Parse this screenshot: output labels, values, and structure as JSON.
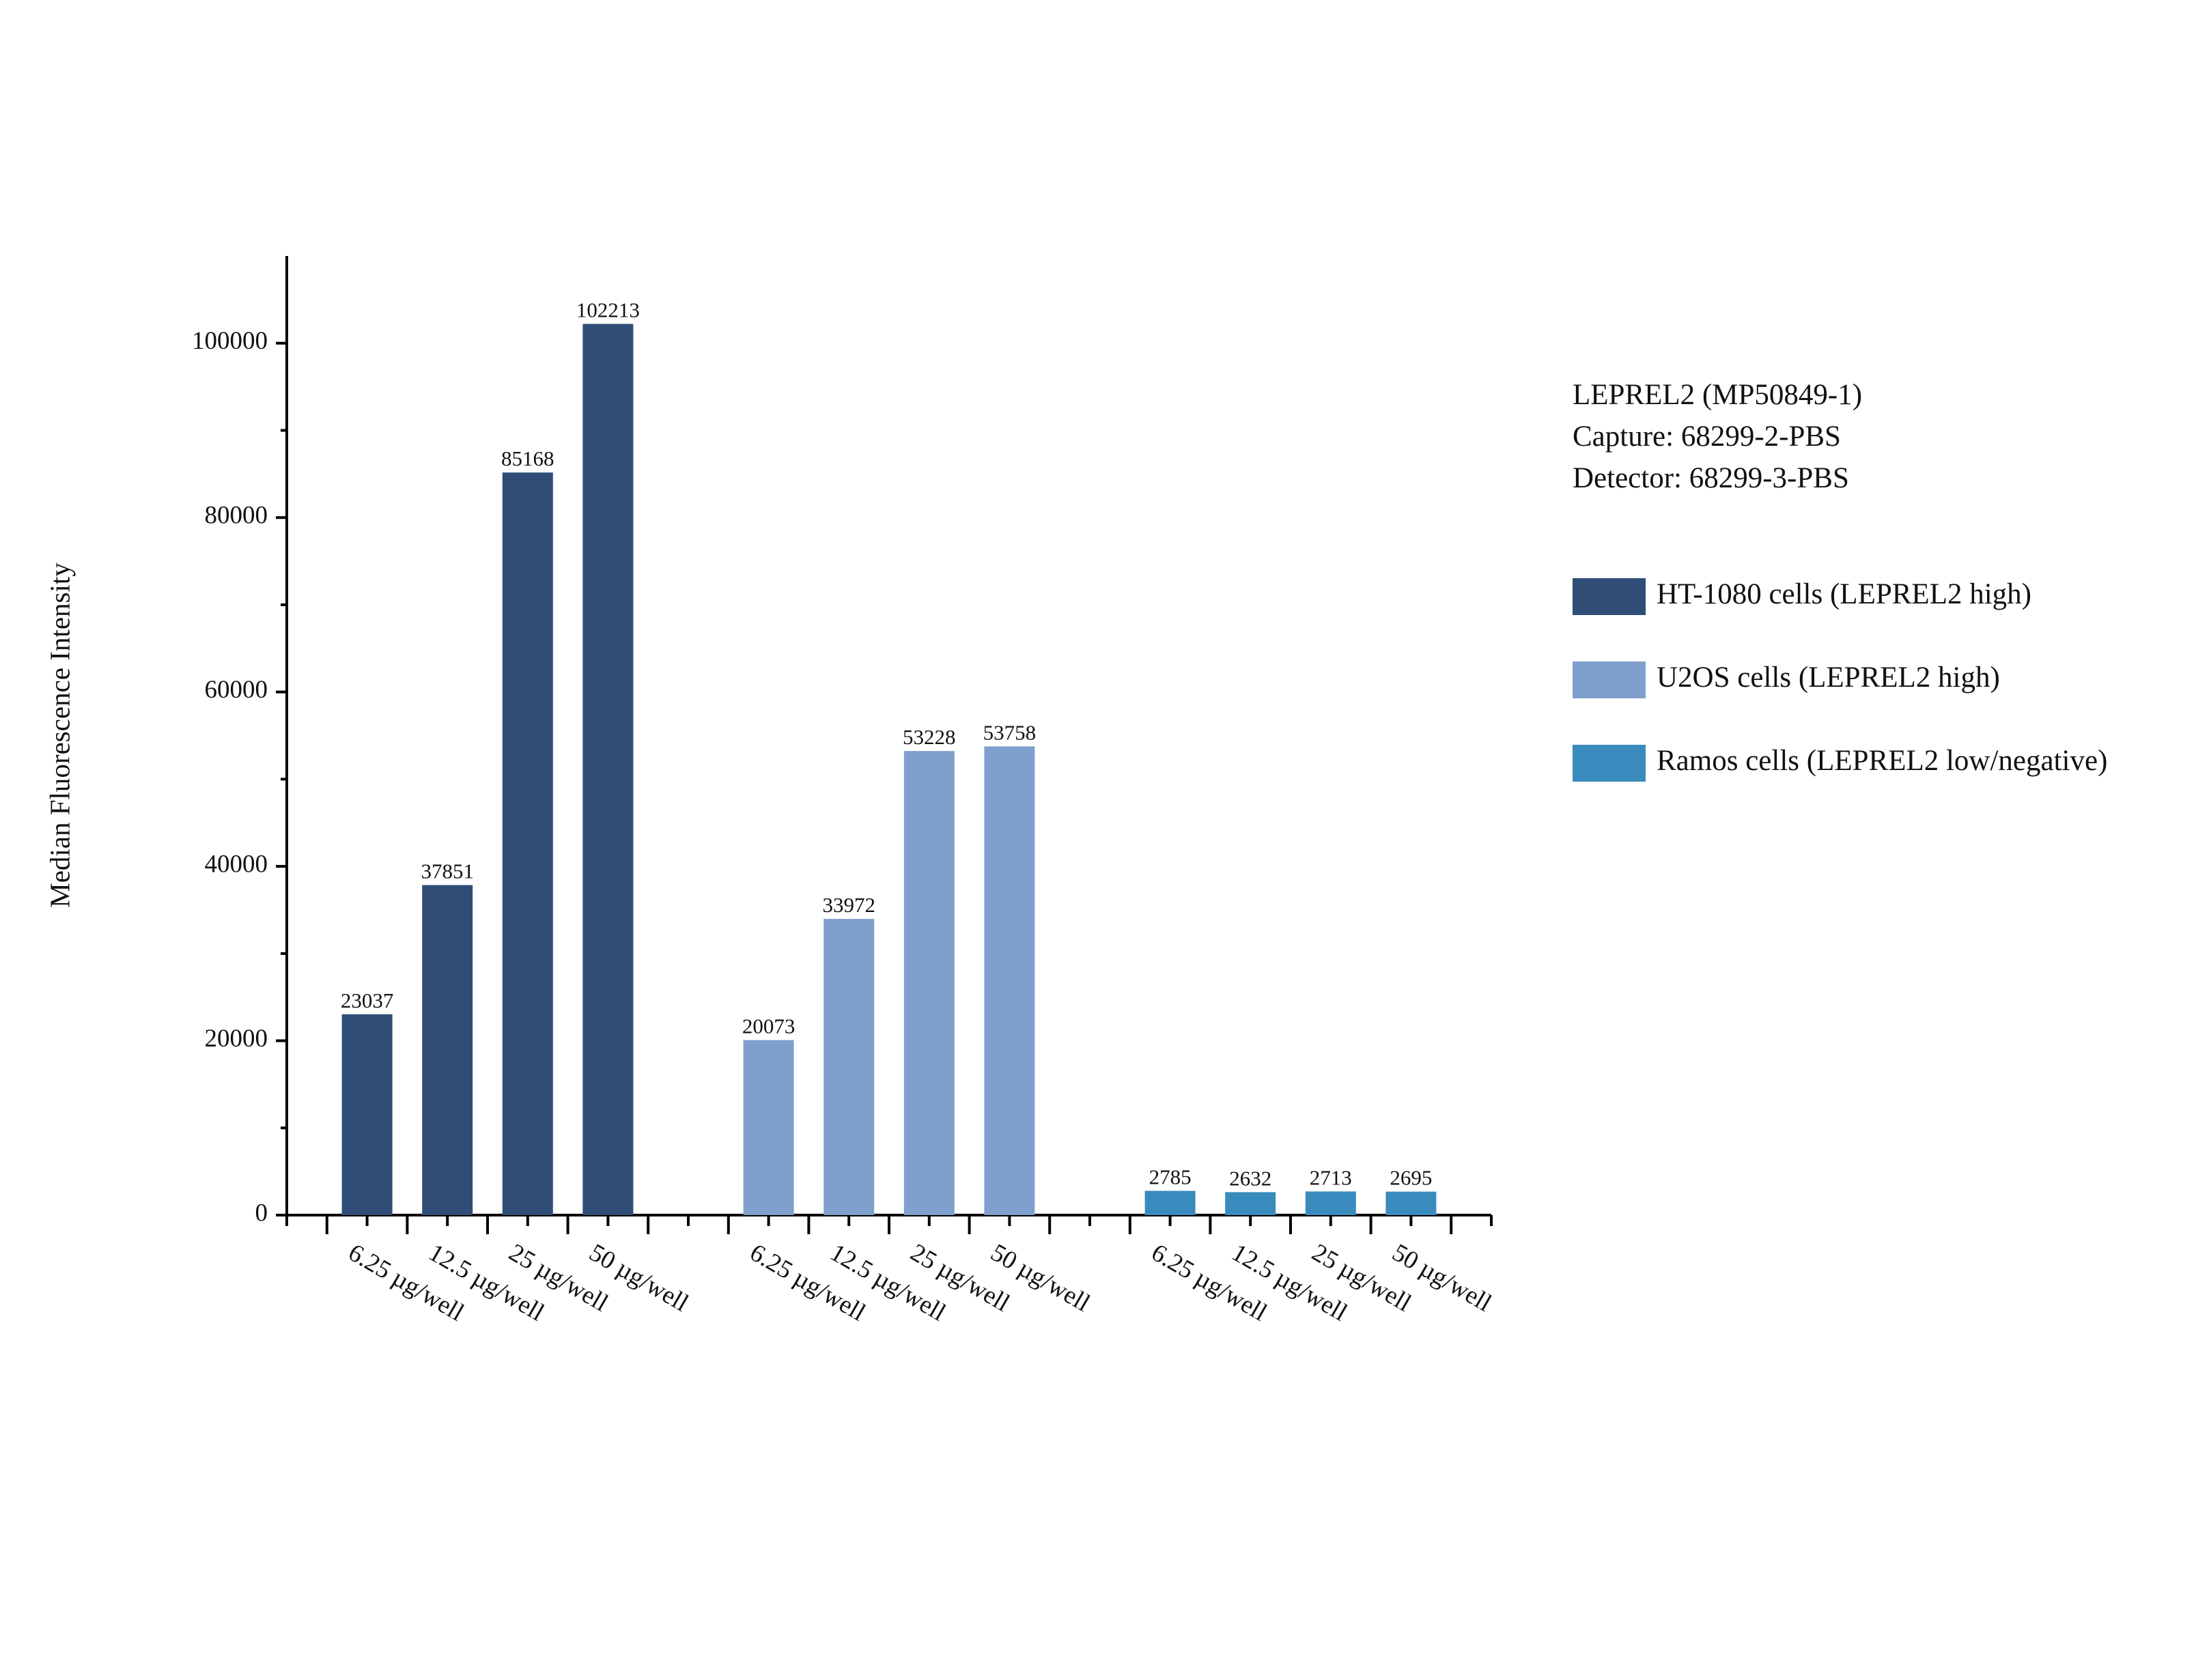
{
  "chart_data": {
    "type": "bar",
    "y_label": "Median Fluorescence Intensity",
    "annotations": [
      "LEPREL2 (MP50849-1)",
      "Capture: 68299-2-PBS",
      "Detector: 68299-3-PBS"
    ],
    "categories": [
      "6.25 µg/well",
      "12.5 µg/well",
      "25 µg/well",
      "50 µg/well"
    ],
    "series": [
      {
        "name": "HT-1080 cells (LEPREL2 high)",
        "color": "#2f4d77",
        "values": [
          23037,
          37851,
          85168,
          102213
        ]
      },
      {
        "name": "U2OS cells (LEPREL2 high)",
        "color": "#7f9fcd",
        "values": [
          20073,
          33972,
          53228,
          53758
        ]
      },
      {
        "name": "Ramos cells (LEPREL2 low/negative)",
        "color": "#3a8bbd",
        "values": [
          2785,
          2632,
          2713,
          2695
        ]
      }
    ],
    "ylim": [
      0,
      110000
    ],
    "yticks": [
      0,
      20000,
      40000,
      60000,
      80000,
      100000
    ],
    "legend": "right"
  }
}
